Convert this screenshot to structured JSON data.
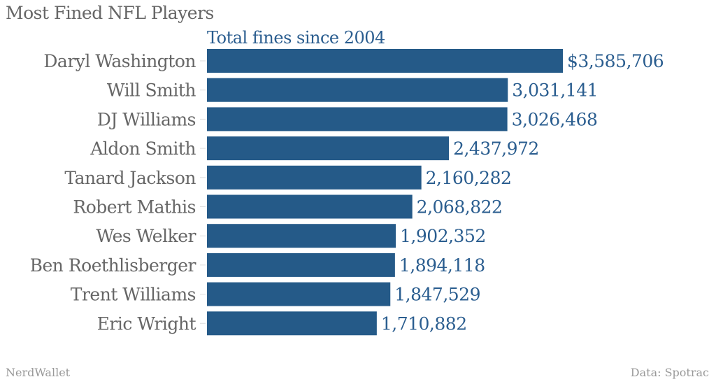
{
  "chart_data": {
    "type": "bar",
    "orientation": "horizontal",
    "title": "Most Fined NFL Players",
    "subtitle": "Total fines since 2004",
    "categories": [
      "Daryl Washington",
      "Will Smith",
      "DJ Williams",
      "Aldon Smith",
      "Tanard Jackson",
      "Robert Mathis",
      "Wes Welker",
      "Ben Roethlisberger",
      "Trent Williams",
      "Eric Wright"
    ],
    "values": [
      3585706,
      3031141,
      3026468,
      2437972,
      2160282,
      2068822,
      1902352,
      1894118,
      1847529,
      1710882
    ],
    "value_labels": [
      "$3,585,706",
      "3,031,141",
      "3,026,468",
      "2,437,972",
      "2,160,282",
      "2,068,822",
      "1,902,352",
      "1,894,118",
      "1,847,529",
      "1,710,882"
    ],
    "xlim": [
      0,
      3585706
    ],
    "grid": false,
    "bar_color": "#255a88"
  },
  "footer": {
    "source_left": "NerdWallet",
    "source_right": "Data: Spotrac"
  }
}
